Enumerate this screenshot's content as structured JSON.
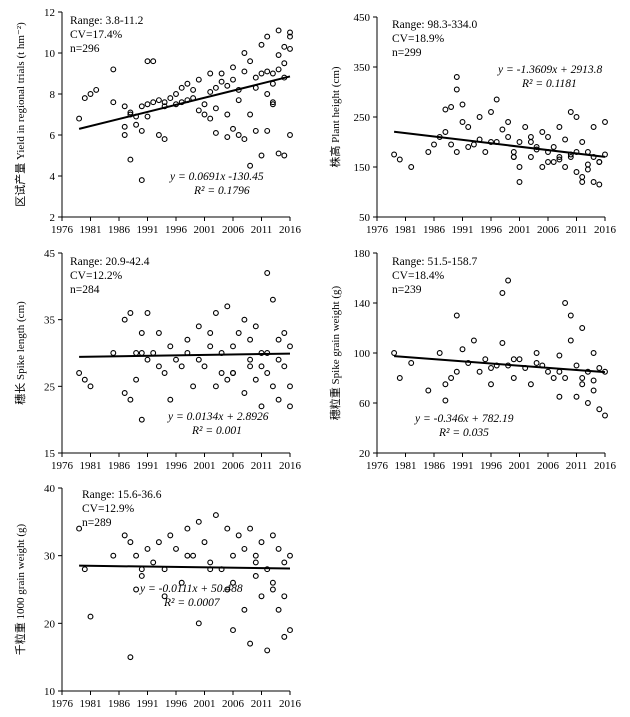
{
  "chart_data": [
    {
      "type": "scatter",
      "ylabel": "区试产量 Yield in regional trials (t hm⁻²)",
      "xlim": [
        1976,
        2016
      ],
      "ylim": [
        2,
        12
      ],
      "xticks": [
        1976,
        1981,
        1986,
        1991,
        1996,
        2001,
        2006,
        2011,
        2016
      ],
      "yticks": [
        2,
        4,
        6,
        8,
        10,
        12
      ],
      "stats": [
        "Range: 3.8-11.2",
        "CV=17.4%",
        "n=296"
      ],
      "equation": "y = 0.0691x -130.45",
      "r2": "R² = 0.1796",
      "trend": {
        "slope": 0.0691,
        "intercept": -130.45,
        "x_start": 1979,
        "x_end": 2016
      },
      "x": [
        1979,
        1980,
        1981,
        1982,
        1985,
        1985,
        1987,
        1987,
        1988,
        1988,
        1989,
        1989,
        1990,
        1990,
        1990,
        1991,
        1991,
        1992,
        1992,
        1993,
        1993,
        1994,
        1994,
        1995,
        1996,
        1996,
        1997,
        1997,
        1998,
        1998,
        1999,
        1999,
        2000,
        2000,
        2001,
        2001,
        2002,
        2002,
        2003,
        2003,
        2004,
        2004,
        2005,
        2005,
        2006,
        2006,
        2007,
        2007,
        2008,
        2008,
        2009,
        2009,
        2010,
        2010,
        2011,
        2011,
        2012,
        2012,
        2013,
        2013,
        2014,
        2014,
        2015,
        2015,
        2016,
        2016,
        2016,
        2012,
        2011,
        2014,
        2009,
        2008,
        2015,
        2013,
        2010,
        2007,
        2006,
        2005,
        1994,
        1991,
        1988,
        1987,
        2003,
        2002,
        2012,
        2013,
        2014,
        2015,
        2016
      ],
      "y": [
        6.8,
        7.8,
        8.0,
        8.2,
        9.2,
        7.6,
        7.4,
        6.0,
        4.8,
        7.1,
        6.5,
        6.9,
        3.8,
        7.4,
        6.2,
        9.6,
        7.5,
        7.6,
        9.6,
        6.0,
        7.7,
        7.4,
        7.6,
        7.8,
        8.0,
        7.5,
        8.3,
        7.6,
        7.7,
        8.5,
        7.8,
        8.2,
        7.2,
        8.7,
        7.5,
        7.0,
        9.0,
        8.1,
        6.1,
        8.3,
        8.6,
        9.0,
        7.0,
        8.4,
        9.3,
        8.7,
        6.0,
        7.7,
        9.1,
        10.0,
        9.6,
        7.0,
        8.3,
        6.2,
        10.4,
        9.0,
        9.1,
        10.8,
        9.0,
        7.6,
        11.1,
        9.9,
        10.3,
        9.5,
        10.8,
        11.0,
        6.0,
        6.2,
        5.0,
        5.1,
        4.5,
        5.8,
        5.0,
        7.5,
        8.8,
        8.2,
        6.3,
        5.9,
        5.8,
        6.9,
        7.0,
        6.4,
        7.3,
        6.8,
        8.0,
        8.5,
        9.2,
        8.8,
        10.2
      ]
    },
    {
      "type": "scatter",
      "ylabel": "株高 Plant height (cm)",
      "xlim": [
        1976,
        2016
      ],
      "ylim": [
        50,
        450
      ],
      "xticks": [
        1976,
        1981,
        1986,
        1991,
        1996,
        2001,
        2006,
        2011,
        2016
      ],
      "yticks": [
        50,
        150,
        250,
        350,
        450
      ],
      "stats": [
        "Range: 98.3-334.0",
        "CV=18.9%",
        "n=299"
      ],
      "equation": "y = -1.3609x + 2913.8",
      "r2": "R² = 0.1181",
      "trend": {
        "slope": -1.3609,
        "intercept": 2913.8,
        "x_start": 1979,
        "x_end": 2016
      },
      "x": [
        1979,
        1980,
        1982,
        1985,
        1986,
        1987,
        1988,
        1988,
        1989,
        1989,
        1990,
        1990,
        1991,
        1991,
        1992,
        1993,
        1994,
        1995,
        1996,
        1996,
        1997,
        1998,
        1999,
        1999,
        2000,
        2000,
        2001,
        2001,
        2002,
        2003,
        2003,
        2004,
        2005,
        2005,
        2006,
        2006,
        2007,
        2008,
        2008,
        2009,
        2009,
        2010,
        2010,
        2011,
        2011,
        2012,
        2012,
        2013,
        2013,
        2014,
        2014,
        2015,
        2015,
        2016,
        2016,
        1990,
        1992,
        1997,
        2000,
        2004,
        2007,
        2011,
        2013,
        2015,
        2014,
        2012,
        2010,
        2008,
        2006,
        2003,
        2001,
        1994
      ],
      "y": [
        175,
        165,
        150,
        180,
        195,
        210,
        220,
        265,
        270,
        195,
        330,
        305,
        240,
        275,
        230,
        195,
        205,
        180,
        200,
        260,
        285,
        225,
        240,
        210,
        170,
        180,
        120,
        200,
        230,
        170,
        200,
        190,
        150,
        220,
        160,
        210,
        190,
        170,
        230,
        205,
        150,
        260,
        170,
        140,
        250,
        200,
        120,
        180,
        155,
        170,
        230,
        160,
        115,
        175,
        240,
        180,
        190,
        200,
        170,
        185,
        160,
        180,
        145,
        160,
        120,
        130,
        175,
        165,
        180,
        210,
        150,
        250
      ]
    },
    {
      "type": "scatter",
      "ylabel": "穗长 Spike length (cm)",
      "xlim": [
        1976,
        2016
      ],
      "ylim": [
        15,
        45
      ],
      "xticks": [
        1976,
        1981,
        1986,
        1991,
        1996,
        2001,
        2006,
        2011,
        2016
      ],
      "yticks": [
        15,
        25,
        35,
        45
      ],
      "stats": [
        "Range: 20.9-42.4",
        "CV=12.2%",
        "n=284"
      ],
      "equation": "y = 0.0134x + 2.8926",
      "r2": "R² = 0.001",
      "trend": {
        "slope": 0.0134,
        "intercept": 2.8926,
        "x_start": 1979,
        "x_end": 2016
      },
      "x": [
        1979,
        1980,
        1981,
        1985,
        1987,
        1987,
        1988,
        1988,
        1989,
        1989,
        1990,
        1990,
        1991,
        1991,
        1992,
        1993,
        1994,
        1995,
        1995,
        1996,
        1997,
        1998,
        1999,
        2000,
        2000,
        2001,
        2002,
        2003,
        2003,
        2004,
        2005,
        2005,
        2006,
        2006,
        2007,
        2008,
        2008,
        2009,
        2009,
        2010,
        2010,
        2011,
        2011,
        2012,
        2012,
        2013,
        2013,
        2014,
        2014,
        2015,
        2015,
        2016,
        2016,
        1990,
        1993,
        1998,
        2002,
        2006,
        2011,
        2014,
        2016,
        2012,
        2009,
        2004
      ],
      "y": [
        27,
        26,
        25,
        30,
        35,
        24,
        36,
        23,
        30,
        26,
        20,
        33,
        36,
        29,
        30,
        33,
        27,
        23,
        31,
        29,
        28,
        32,
        25,
        34,
        29,
        28,
        33,
        36,
        25,
        30,
        26,
        37,
        27,
        31,
        33,
        24,
        35,
        29,
        32,
        26,
        34,
        22,
        30,
        42,
        27,
        38,
        25,
        32,
        23,
        33,
        28,
        22,
        31,
        30,
        28,
        30,
        31,
        27,
        28,
        29,
        25,
        30,
        28,
        27
      ]
    },
    {
      "type": "scatter",
      "ylabel": "穗粒重 Spike grain weight (g)",
      "xlim": [
        1976,
        2016
      ],
      "ylim": [
        20,
        180
      ],
      "xticks": [
        1976,
        1981,
        1986,
        1991,
        1996,
        2001,
        2006,
        2011,
        2016
      ],
      "yticks": [
        20,
        60,
        100,
        140,
        180
      ],
      "stats": [
        "Range: 51.5-158.7",
        "CV=18.4%",
        "n=239"
      ],
      "equation": "y = -0.346x + 782.19",
      "r2": "R² = 0.035",
      "trend": {
        "slope": -0.346,
        "intercept": 782.19,
        "x_start": 1979,
        "x_end": 2016
      },
      "x": [
        1979,
        1980,
        1982,
        1985,
        1987,
        1988,
        1988,
        1989,
        1990,
        1990,
        1991,
        1992,
        1993,
        1994,
        1995,
        1996,
        1997,
        1998,
        1998,
        1999,
        1999,
        2000,
        2001,
        2002,
        2003,
        2004,
        2005,
        2006,
        2007,
        2008,
        2008,
        2009,
        2009,
        2010,
        2010,
        2011,
        2011,
        2012,
        2012,
        2013,
        2013,
        2014,
        2014,
        2015,
        2015,
        2016,
        2016,
        1996,
        2000,
        2004,
        2008,
        2012,
        2014
      ],
      "y": [
        100,
        80,
        92,
        70,
        100,
        75,
        62,
        80,
        130,
        85,
        103,
        92,
        110,
        85,
        95,
        75,
        90,
        148,
        108,
        158,
        90,
        80,
        95,
        88,
        75,
        100,
        90,
        85,
        80,
        65,
        98,
        140,
        80,
        130,
        110,
        65,
        90,
        120,
        75,
        85,
        60,
        78,
        100,
        55,
        88,
        50,
        85,
        88,
        95,
        92,
        85,
        80,
        70
      ]
    },
    {
      "type": "scatter",
      "ylabel": "千粒重 1000 grain weight (g)",
      "xlim": [
        1976,
        2016
      ],
      "ylim": [
        10,
        40
      ],
      "xticks": [
        1976,
        1981,
        1986,
        1991,
        1996,
        2001,
        2006,
        2011,
        2016
      ],
      "yticks": [
        10,
        20,
        30,
        40
      ],
      "stats": [
        "Range: 15.6-36.6",
        "CV=12.9%",
        "n=289"
      ],
      "equation": "y = -0.0111x + 50.488",
      "r2": "R² = 0.0007",
      "trend": {
        "slope": -0.0111,
        "intercept": 50.488,
        "x_start": 1979,
        "x_end": 2016
      },
      "x": [
        1979,
        1980,
        1981,
        1985,
        1987,
        1988,
        1988,
        1989,
        1989,
        1990,
        1991,
        1992,
        1993,
        1994,
        1995,
        1996,
        1997,
        1998,
        1999,
        2000,
        2000,
        2001,
        2002,
        2003,
        2004,
        2005,
        2005,
        2006,
        2006,
        2007,
        2008,
        2008,
        2009,
        2009,
        2010,
        2010,
        2011,
        2011,
        2012,
        2012,
        2013,
        2013,
        2014,
        2014,
        2015,
        2015,
        2016,
        2016,
        1990,
        1994,
        1998,
        2002,
        2006,
        2010,
        2013,
        2015
      ],
      "y": [
        34,
        28,
        21,
        30,
        33,
        15,
        32,
        25,
        30,
        28,
        31,
        29,
        32,
        28,
        33,
        31,
        26,
        34,
        30,
        35,
        20,
        32,
        29,
        36,
        28,
        25,
        34,
        19,
        30,
        33,
        22,
        31,
        17,
        34,
        27,
        30,
        24,
        32,
        16,
        28,
        33,
        26,
        31,
        22,
        29,
        18,
        30,
        19,
        27,
        24,
        30,
        28,
        26,
        29,
        25,
        24
      ]
    }
  ]
}
